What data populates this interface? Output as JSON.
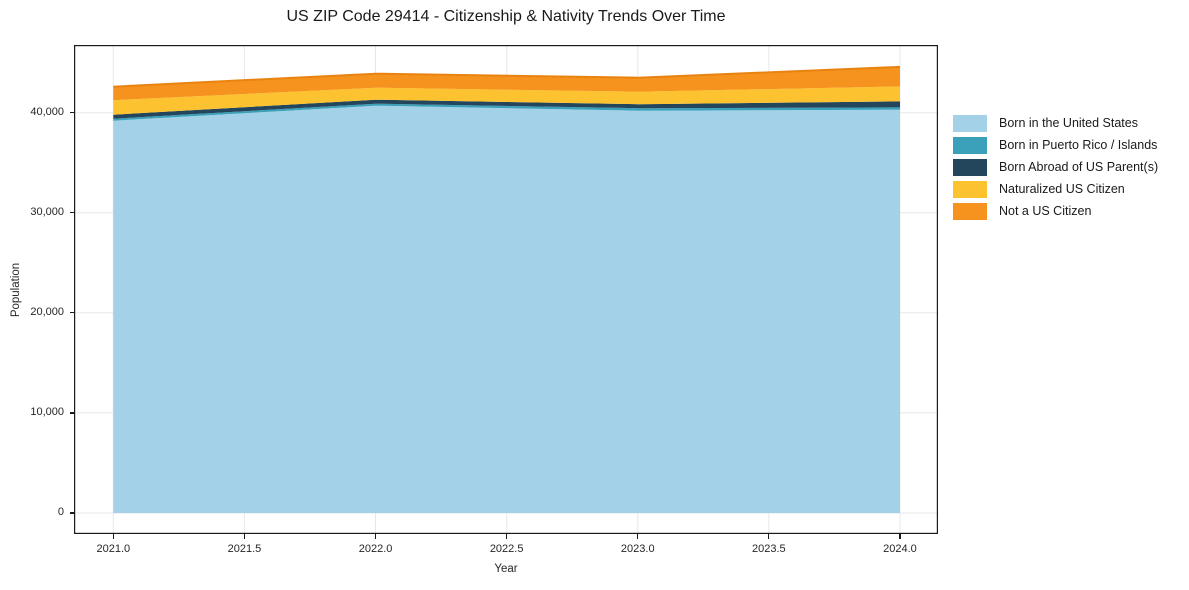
{
  "title": "US ZIP Code 29414 - Citizenship & Nativity Trends Over Time",
  "axes": {
    "xlabel": "Year",
    "ylabel": "Population",
    "xtick_labels": [
      "2021.0",
      "2021.5",
      "2022.0",
      "2022.5",
      "2023.0",
      "2023.5",
      "2024.0"
    ],
    "ytick_labels": [
      "0",
      "10,000",
      "20,000",
      "30,000",
      "40,000"
    ]
  },
  "legend": {
    "position": "right-outside",
    "items": [
      {
        "label": "Born in the United States",
        "color": "#A3D2E8"
      },
      {
        "label": "Born in Puerto Rico / Islands",
        "color": "#3BA0B9"
      },
      {
        "label": "Born Abroad of US Parent(s)",
        "color": "#24465C"
      },
      {
        "label": "Naturalized US Citizen",
        "color": "#FDC22F"
      },
      {
        "label": "Not a US Citizen",
        "color": "#F6931E"
      }
    ]
  },
  "chart_data": {
    "type": "area",
    "stacked": true,
    "title": "US ZIP Code 29414 - Citizenship & Nativity Trends Over Time",
    "xlabel": "Year",
    "ylabel": "Population",
    "x": [
      2021,
      2022,
      2023,
      2024
    ],
    "series": [
      {
        "name": "Born in the United States",
        "color": "#A3D2E8",
        "values": [
          39200,
          40700,
          40200,
          40300
        ]
      },
      {
        "name": "Born in Puerto Rico / Islands",
        "color": "#3BA0B9",
        "values": [
          200,
          200,
          250,
          230
        ]
      },
      {
        "name": "Born Abroad of US Parent(s)",
        "color": "#24465C",
        "values": [
          400,
          400,
          400,
          600
        ]
      },
      {
        "name": "Naturalized US Citizen",
        "color": "#FDC22F",
        "values": [
          1450,
          1200,
          1250,
          1500
        ]
      },
      {
        "name": "Not a US Citizen",
        "color": "#F6931E",
        "values": [
          1350,
          1400,
          1400,
          1950
        ]
      }
    ],
    "totals": [
      42600,
      43900,
      43500,
      44580
    ],
    "xticks": [
      2021.0,
      2021.5,
      2022.0,
      2022.5,
      2023.0,
      2023.5,
      2024.0
    ],
    "yticks": [
      0,
      10000,
      20000,
      30000,
      40000
    ],
    "xlim": [
      2020.85,
      2024.145
    ],
    "ylim": [
      -2100,
      46765
    ],
    "grid": true,
    "grid_color": "#e7e7e7",
    "spine_color": "#1a1a1a",
    "top_edge_color": "#E8830F",
    "legend_position": "right"
  }
}
